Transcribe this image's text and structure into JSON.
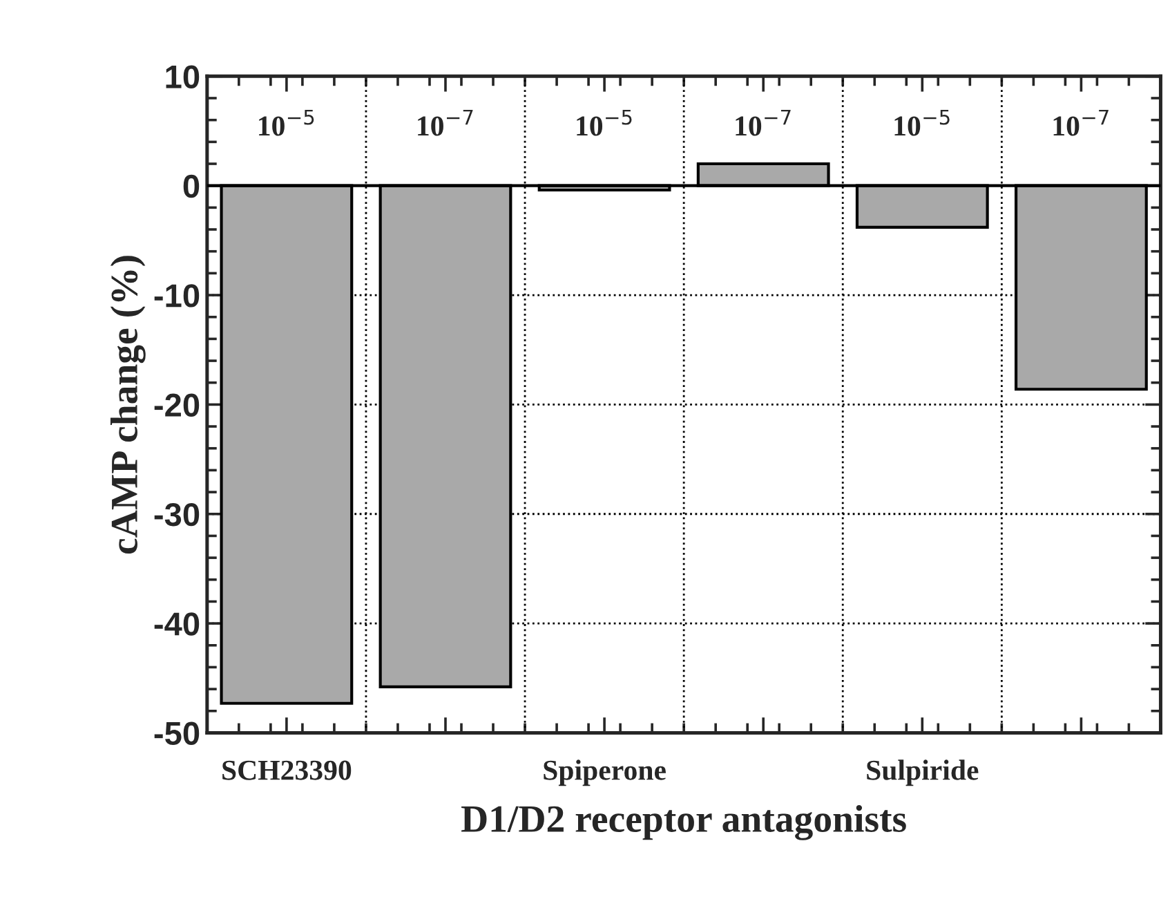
{
  "chart_data": {
    "type": "bar",
    "xlabel": "D1/D2 receptor antagonists",
    "ylabel": "cAMP change (%)",
    "categories": [
      "SCH23390",
      null,
      "Spiperone",
      null,
      "Sulpiride",
      null
    ],
    "values": [
      -47.3,
      -45.8,
      -0.4,
      2.0,
      -3.8,
      -18.6
    ],
    "color": "#a9a9a9",
    "annotations": [
      "10$^{−5}$",
      "10$^{−7}$",
      "10$^{−5}$",
      "10$^{−7}$",
      "10$^{−5}$",
      "10$^{−7}$"
    ],
    "ylim": [
      -50,
      10
    ],
    "yticks": [
      -50,
      -40,
      -30,
      -20,
      -10,
      0,
      10
    ],
    "grid": true
  }
}
